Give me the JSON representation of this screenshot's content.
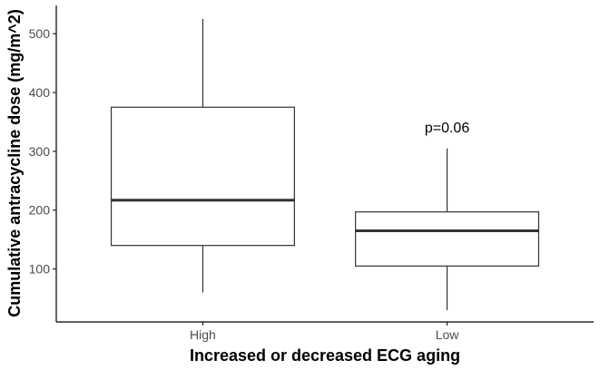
{
  "chart_data": {
    "type": "box",
    "xlabel": "Increased or decreased ECG aging",
    "ylabel": "Cumulative antracycline dose (mg/m^2)",
    "categories": [
      "High",
      "Low"
    ],
    "boxes": [
      {
        "category": "High",
        "whisker_low": 60,
        "q1": 140,
        "median": 217,
        "q3": 375,
        "whisker_high": 525
      },
      {
        "category": "Low",
        "whisker_low": 30,
        "q1": 105,
        "median": 165,
        "q3": 197,
        "whisker_high": 305
      }
    ],
    "yticks": [
      100,
      200,
      300,
      400,
      500
    ],
    "ylim": [
      10,
      548
    ],
    "annotation": {
      "text": "p=0.06",
      "category": "Low",
      "y": 340
    },
    "grid": false,
    "colors": {
      "box_fill": "#ffffff",
      "box_stroke": "#333333",
      "axis": "#000000",
      "tick_text": "#4d4d4d"
    }
  }
}
